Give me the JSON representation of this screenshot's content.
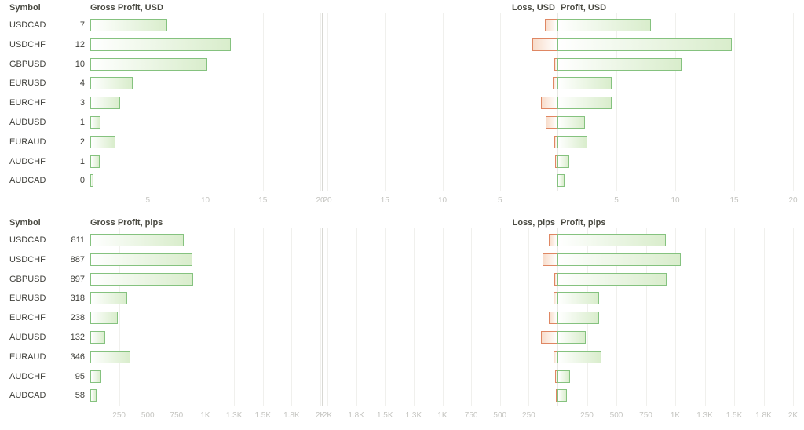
{
  "colors": {
    "profit_border": "#85c27f",
    "profit_fill": "#d9edcc",
    "loss_border": "#df8763",
    "loss_fill": "#f8dcca",
    "header_text": "#4a4a42",
    "label_text": "#40403b",
    "axis_text": "#c4c4c0",
    "grid_line": "#f0f0ed",
    "divider_line": "#d8d8d3",
    "zero_line": "#e8e8e4"
  },
  "chart_data": [
    {
      "type": "bar",
      "orientation": "horizontal",
      "row_header": "Symbol",
      "title": "Gross Profit, USD",
      "categories": [
        "USDCAD",
        "USDCHF",
        "GBPUSD",
        "EURUSD",
        "EURCHF",
        "AUDUSD",
        "EURAUD",
        "AUDCHF",
        "AUDCAD"
      ],
      "value_labels": [
        "7",
        "12",
        "10",
        "4",
        "3",
        "1",
        "2",
        "1",
        "0"
      ],
      "values": [
        6.7,
        12.2,
        10.2,
        3.7,
        2.6,
        0.9,
        2.2,
        0.8,
        0.3
      ],
      "xlim": [
        0,
        20
      ],
      "grid": true,
      "ticks": [
        {
          "value": 5,
          "label": "5"
        },
        {
          "value": 10,
          "label": "10"
        },
        {
          "value": 15,
          "label": "15"
        },
        {
          "value": 20,
          "label": "20"
        }
      ]
    },
    {
      "type": "bar",
      "orientation": "diverging",
      "loss_title": "Loss, USD",
      "profit_title": "Profit, USD",
      "categories": [
        "USDCAD",
        "USDCHF",
        "GBPUSD",
        "EURUSD",
        "EURCHF",
        "AUDUSD",
        "EURAUD",
        "AUDCHF",
        "AUDCAD"
      ],
      "series": [
        {
          "name": "Loss, USD",
          "values": [
            1.1,
            2.2,
            0.3,
            0.4,
            1.4,
            1.0,
            0.3,
            0.2,
            0.1
          ]
        },
        {
          "name": "Profit, USD",
          "values": [
            7.9,
            14.8,
            10.5,
            4.6,
            4.6,
            2.3,
            2.5,
            1.0,
            0.6
          ]
        }
      ],
      "xlim": [
        0,
        20
      ],
      "grid": true,
      "ticks_loss": [
        {
          "value": 20,
          "label": "20"
        },
        {
          "value": 15,
          "label": "15"
        },
        {
          "value": 10,
          "label": "10"
        },
        {
          "value": 5,
          "label": "5"
        }
      ],
      "ticks_profit": [
        {
          "value": 5,
          "label": "5"
        },
        {
          "value": 10,
          "label": "10"
        },
        {
          "value": 15,
          "label": "15"
        },
        {
          "value": 20,
          "label": "20"
        }
      ]
    },
    {
      "type": "bar",
      "orientation": "horizontal",
      "row_header": "Symbol",
      "title": "Gross Profit, pips",
      "categories": [
        "USDCAD",
        "USDCHF",
        "GBPUSD",
        "EURUSD",
        "EURCHF",
        "AUDUSD",
        "EURAUD",
        "AUDCHF",
        "AUDCAD"
      ],
      "value_labels": [
        "811",
        "887",
        "897",
        "318",
        "238",
        "132",
        "346",
        "95",
        "58"
      ],
      "values": [
        811,
        887,
        897,
        318,
        238,
        132,
        346,
        95,
        58
      ],
      "xlim": [
        0,
        2000
      ],
      "grid": true,
      "ticks": [
        {
          "value": 250,
          "label": "250"
        },
        {
          "value": 500,
          "label": "500"
        },
        {
          "value": 750,
          "label": "750"
        },
        {
          "value": 1000,
          "label": "1K"
        },
        {
          "value": 1250,
          "label": "1.3K"
        },
        {
          "value": 1500,
          "label": "1.5K"
        },
        {
          "value": 1750,
          "label": "1.8K"
        },
        {
          "value": 2000,
          "label": "2K"
        }
      ]
    },
    {
      "type": "bar",
      "orientation": "diverging",
      "loss_title": "Loss, pips",
      "profit_title": "Profit, pips",
      "categories": [
        "USDCAD",
        "USDCHF",
        "GBPUSD",
        "EURUSD",
        "EURCHF",
        "AUDUSD",
        "EURAUD",
        "AUDCHF",
        "AUDCAD"
      ],
      "series": [
        {
          "name": "Loss, pips",
          "values": [
            75,
            130,
            30,
            35,
            75,
            140,
            35,
            20,
            13
          ]
        },
        {
          "name": "Profit, pips",
          "values": [
            920,
            1045,
            925,
            355,
            355,
            240,
            370,
            107,
            80
          ]
        }
      ],
      "xlim": [
        0,
        2000
      ],
      "grid": true,
      "ticks_loss": [
        {
          "value": 2000,
          "label": "2K"
        },
        {
          "value": 1750,
          "label": "1.8K"
        },
        {
          "value": 1500,
          "label": "1.5K"
        },
        {
          "value": 1250,
          "label": "1.3K"
        },
        {
          "value": 1000,
          "label": "1K"
        },
        {
          "value": 750,
          "label": "750"
        },
        {
          "value": 500,
          "label": "500"
        },
        {
          "value": 250,
          "label": "250"
        }
      ],
      "ticks_profit": [
        {
          "value": 250,
          "label": "250"
        },
        {
          "value": 500,
          "label": "500"
        },
        {
          "value": 750,
          "label": "750"
        },
        {
          "value": 1000,
          "label": "1K"
        },
        {
          "value": 1250,
          "label": "1.3K"
        },
        {
          "value": 1500,
          "label": "1.5K"
        },
        {
          "value": 1750,
          "label": "1.8K"
        },
        {
          "value": 2000,
          "label": "2K"
        }
      ]
    }
  ]
}
